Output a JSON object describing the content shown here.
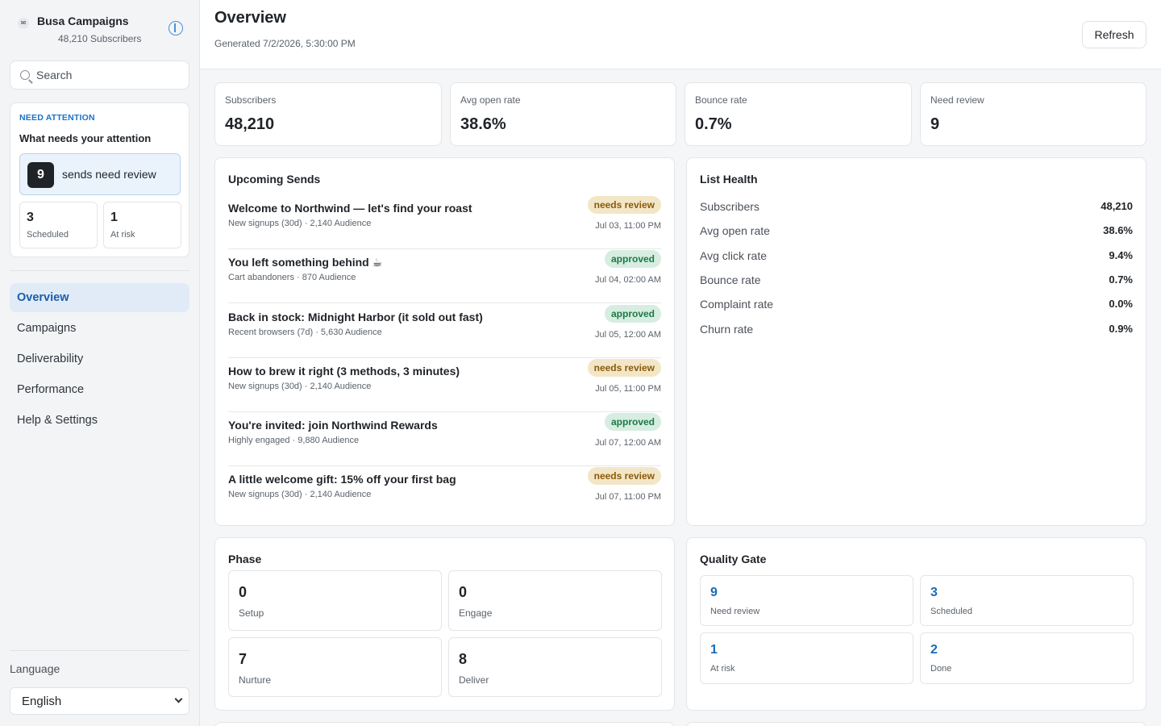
{
  "brand": {
    "icon": "mail-icon",
    "name": "Busa Campaigns",
    "subscribers": "48,210 Subscribers"
  },
  "search": {
    "placeholder": "Search",
    "value": ""
  },
  "attention": {
    "eyebrow": "NEED ATTENTION",
    "title": "What needs your attention",
    "review_count": "9",
    "review_label": "sends need review",
    "scheduled_count": "3",
    "scheduled_label": "Scheduled",
    "at_risk_count": "1",
    "at_risk_label": "At risk"
  },
  "nav": {
    "items": [
      {
        "label": "Overview",
        "active": true
      },
      {
        "label": "Campaigns",
        "active": false
      },
      {
        "label": "Deliverability",
        "active": false
      },
      {
        "label": "Performance",
        "active": false
      },
      {
        "label": "Help & Settings",
        "active": false
      }
    ]
  },
  "language": {
    "label": "Language",
    "selected": "English"
  },
  "header": {
    "title": "Overview",
    "generated": "Generated 7/2/2026, 5:30:00 PM",
    "refresh_label": "Refresh"
  },
  "stats": [
    {
      "label": "Subscribers",
      "value": "48,210"
    },
    {
      "label": "Avg open rate",
      "value": "38.6%"
    },
    {
      "label": "Bounce rate",
      "value": "0.7%"
    },
    {
      "label": "Need review",
      "value": "9"
    }
  ],
  "upcoming": {
    "title": "Upcoming Sends",
    "sends": [
      {
        "name": "Welcome to Northwind — let's find your roast",
        "meta": "New signups (30d) · 2,140 Audience",
        "status": "needs review",
        "time": "Jul 03, 11:00 PM"
      },
      {
        "name": "You left something behind ☕",
        "meta": "Cart abandoners · 870 Audience",
        "status": "approved",
        "time": "Jul 04, 02:00 AM"
      },
      {
        "name": "Back in stock: Midnight Harbor (it sold out fast)",
        "meta": "Recent browsers (7d) · 5,630 Audience",
        "status": "approved",
        "time": "Jul 05, 12:00 AM"
      },
      {
        "name": "How to brew it right (3 methods, 3 minutes)",
        "meta": "New signups (30d) · 2,140 Audience",
        "status": "needs review",
        "time": "Jul 05, 11:00 PM"
      },
      {
        "name": "You're invited: join Northwind Rewards",
        "meta": "Highly engaged · 9,880 Audience",
        "status": "approved",
        "time": "Jul 07, 12:00 AM"
      },
      {
        "name": "A little welcome gift: 15% off your first bag",
        "meta": "New signups (30d) · 2,140 Audience",
        "status": "needs review",
        "time": "Jul 07, 11:00 PM"
      }
    ]
  },
  "health": {
    "title": "List Health",
    "rows": [
      {
        "label": "Subscribers",
        "value": "48,210"
      },
      {
        "label": "Avg open rate",
        "value": "38.6%"
      },
      {
        "label": "Avg click rate",
        "value": "9.4%"
      },
      {
        "label": "Bounce rate",
        "value": "0.7%"
      },
      {
        "label": "Complaint rate",
        "value": "0.0%"
      },
      {
        "label": "Churn rate",
        "value": "0.9%"
      }
    ]
  },
  "phase": {
    "title": "Phase",
    "tiles": [
      {
        "value": "0",
        "label": "Setup"
      },
      {
        "value": "0",
        "label": "Engage"
      },
      {
        "value": "7",
        "label": "Nurture"
      },
      {
        "value": "8",
        "label": "Deliver"
      }
    ]
  },
  "quality": {
    "title": "Quality Gate",
    "tiles": [
      {
        "value": "9",
        "label": "Need review"
      },
      {
        "value": "3",
        "label": "Scheduled"
      },
      {
        "value": "1",
        "label": "At risk"
      },
      {
        "value": "2",
        "label": "Done"
      }
    ]
  },
  "colors": {
    "accent": "#1a73c9",
    "needs_review_bg": "#f3e6c7",
    "approved_bg": "#d7ede1"
  }
}
